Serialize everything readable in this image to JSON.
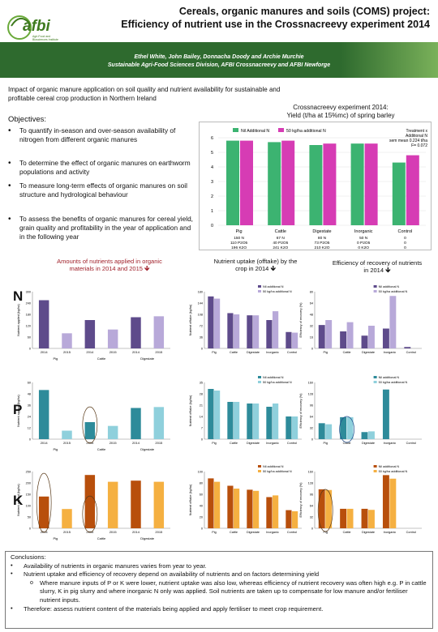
{
  "header": {
    "title_line1": "Cereals, organic manures and soils (COMS) project:",
    "title_line2": "Efficiency of nutrient use in the Crossnacreevy experiment 2014",
    "logo_text": "afbi",
    "logo_subtitle": "Agri-Food and Biosciences Institute",
    "authors": "Ethel White, John Bailey, Donnacha Doody and Archie Murchie",
    "affiliation": "Sustainable Agri-Food Sciences Division, AFBI Crossnacreevy and AFBI Newforge"
  },
  "intro": "Impact of organic manure application on soil quality and nutrient availability for sustainable and profitable cereal crop production in Northern Ireland",
  "objectives": {
    "title": "Objectives:",
    "items": [
      "To quantify in-season and over-season availability of nitrogen from different organic manures",
      "To determine the effect of organic manures on earthworm populations and activity",
      "To measure long-term effects of organic manures on soil structure and hydrological behaviour",
      "To assess the benefits of organic manures for cereal yield, grain quality and profitability in the year of application and in the following year"
    ]
  },
  "colors": {
    "green_band": "#2e6a2e",
    "yield_green": "#3cb371",
    "yield_magenta": "#d63cb4",
    "light_blue": "#9ecae1",
    "lavender": "#b8a9d9",
    "purple_dark": "#5e4b8b",
    "grey_dark": "#555555",
    "teal_dark": "#2e8b9a",
    "teal_light": "#8fd0dc",
    "orange_dark": "#b84f0c",
    "orange_light": "#f5b041"
  },
  "yield_chart": {
    "title_line1": "Crossnacreevy experiment 2014:",
    "title_line2": "Yield (t/ha at 15%mc) of spring barley",
    "legend_a": "Nil Additional N",
    "legend_b": "50 kg/ha additional N",
    "note_line1": "Treatment x",
    "note_line2": "Additional N",
    "note_line3": "sem mean 0.224 t/ha",
    "note_line4": "F= 0.072",
    "sub_labels": [
      [
        "150 N",
        "110 P2O5",
        "196 K2O"
      ],
      [
        "67 N",
        "40 P2O5",
        "241 K2O"
      ],
      [
        "80 N",
        "73 P2O5",
        "210 K2O"
      ],
      [
        "50 N",
        "0 P2O5",
        "0 K2O"
      ],
      [
        "0",
        "0",
        "0"
      ]
    ]
  },
  "section_titles": {
    "amounts_a": "Amounts of nutrients applied in organic",
    "amounts_b": "materials in 2014 and 2015",
    "uptake_a": "Nutrient uptake (offtake) by the",
    "uptake_b": "crop in 2014",
    "recovery_a": "Efficiency of recovery of nutrients",
    "recovery_b": "in 2014"
  },
  "row_letters": [
    "N",
    "P",
    "K"
  ],
  "small_axis": {
    "amount_ylabel": "Nutrient applied (kg/ha)",
    "uptake_ylabel": "Nutrient offtake (kg/ha)",
    "recovery_ylabel": "Efficiency of recovery (%)",
    "year_2014": "2014",
    "year_2015": "2015",
    "legend_nil": "Nil additional N",
    "legend_50": "50 kg/ha additional N"
  },
  "chart_data": [
    {
      "type": "bar",
      "title": "Crossnacreevy experiment 2014: Yield (t/ha at 15%mc) of spring barley",
      "categories": [
        "Pig",
        "Cattle",
        "Digestate",
        "Inorganic",
        "Control"
      ],
      "ylim": [
        0,
        6
      ],
      "series": [
        {
          "name": "Nil Additional N",
          "values": [
            5.8,
            5.7,
            5.5,
            5.6,
            4.3
          ]
        },
        {
          "name": "50 kg/ha additional N",
          "values": [
            5.8,
            5.8,
            5.6,
            5.6,
            4.8
          ]
        }
      ]
    },
    {
      "type": "bar",
      "title": "N applied",
      "categories": [
        "Pig 2014",
        "Pig 2015",
        "Cattle 2014",
        "Cattle 2015",
        "Digestate 2014",
        "Digestate 2015"
      ],
      "ylim": [
        0,
        300
      ],
      "values": [
        255,
        80,
        150,
        100,
        165,
        170
      ]
    },
    {
      "type": "bar",
      "title": "P applied",
      "categories": [
        "Pig 2014",
        "Pig 2015",
        "Cattle 2014",
        "Cattle 2015",
        "Digestate 2014",
        "Digestate 2015"
      ],
      "ylim": [
        0,
        60
      ],
      "values": [
        52,
        9,
        18,
        14,
        33,
        34
      ]
    },
    {
      "type": "bar",
      "title": "K applied",
      "categories": [
        "Pig 2014",
        "Pig 2015",
        "Cattle 2014",
        "Cattle 2015",
        "Digestate 2014",
        "Digestate 2015"
      ],
      "ylim": [
        0,
        250
      ],
      "values": [
        140,
        85,
        235,
        205,
        210,
        205
      ]
    },
    {
      "type": "bar",
      "title": "N offtake",
      "categories": [
        "Pig",
        "Cattle",
        "Digestate",
        "Inorganic",
        "Control"
      ],
      "ylim": [
        0,
        180
      ],
      "series": [
        {
          "name": "Nil additional N",
          "values": [
            165,
            112,
            105,
            90,
            52
          ]
        },
        {
          "name": "50 kg/ha additional N",
          "values": [
            158,
            108,
            105,
            118,
            50
          ]
        }
      ]
    },
    {
      "type": "bar",
      "title": "P offtake",
      "categories": [
        "Pig",
        "Cattle",
        "Digestate",
        "Inorganic",
        "Control"
      ],
      "ylim": [
        0,
        35
      ],
      "series": [
        {
          "name": "Nil additional N",
          "values": [
            31,
            23,
            22,
            20,
            14
          ]
        },
        {
          "name": "50 kg/ha additional N",
          "values": [
            30,
            23,
            22,
            22,
            14
          ]
        }
      ]
    },
    {
      "type": "bar",
      "title": "K offtake",
      "categories": [
        "Pig",
        "Cattle",
        "Digestate",
        "Inorganic",
        "Control"
      ],
      "ylim": [
        0,
        100
      ],
      "series": [
        {
          "name": "Nil additional N",
          "values": [
            88,
            75,
            68,
            55,
            32
          ]
        },
        {
          "name": "50 kg/ha additional N",
          "values": [
            82,
            70,
            66,
            58,
            30
          ]
        }
      ]
    },
    {
      "type": "bar",
      "title": "N recovery",
      "categories": [
        "Pig",
        "Cattle",
        "Digestate",
        "Inorganic",
        "Control"
      ],
      "ylim": [
        0,
        80
      ],
      "series": [
        {
          "name": "Nil additional N",
          "values": [
            33,
            24,
            18,
            28,
            2
          ]
        },
        {
          "name": "50 kg/ha additional N",
          "values": [
            40,
            37,
            32,
            74,
            0
          ]
        }
      ]
    },
    {
      "type": "bar",
      "title": "P recovery",
      "categories": [
        "Pig",
        "Cattle",
        "Digestate",
        "Inorganic",
        "Control"
      ],
      "ylim": [
        0,
        160
      ],
      "series": [
        {
          "name": "Nil additional N",
          "values": [
            45,
            62,
            20,
            140,
            0
          ]
        },
        {
          "name": "50 kg/ha additional N",
          "values": [
            42,
            62,
            22,
            0,
            0
          ]
        }
      ]
    },
    {
      "type": "bar",
      "title": "K recovery",
      "categories": [
        "Pig",
        "Cattle",
        "Digestate",
        "Inorganic",
        "Control"
      ],
      "ylim": [
        0,
        160
      ],
      "series": [
        {
          "name": "Nil additional N",
          "values": [
            110,
            55,
            55,
            150,
            0
          ]
        },
        {
          "name": "50 kg/ha additional N",
          "values": [
            108,
            55,
            52,
            140,
            0
          ]
        }
      ]
    }
  ],
  "conclusions": {
    "title": "Conclusions:",
    "items": [
      "Availability of nutrients in organic manures varies from year to year.",
      "Nutrient uptake and efficiency of recovery depend on availability of nutrients and on factors determining yield"
    ],
    "sub_item": "Where manure inputs of P or K were lower, nutrient uptake was also low, whereas efficiency of nutrient recovery was often high e.g. P in cattle slurry, K in pig slurry and where inorganic N only was applied. Soil nutrients are taken up to compensate for low manure and/or fertiliser nutrient inputs.",
    "final": "Therefore: assess nutrient content of the materials being applied and apply fertiliser to meet crop requirement."
  }
}
